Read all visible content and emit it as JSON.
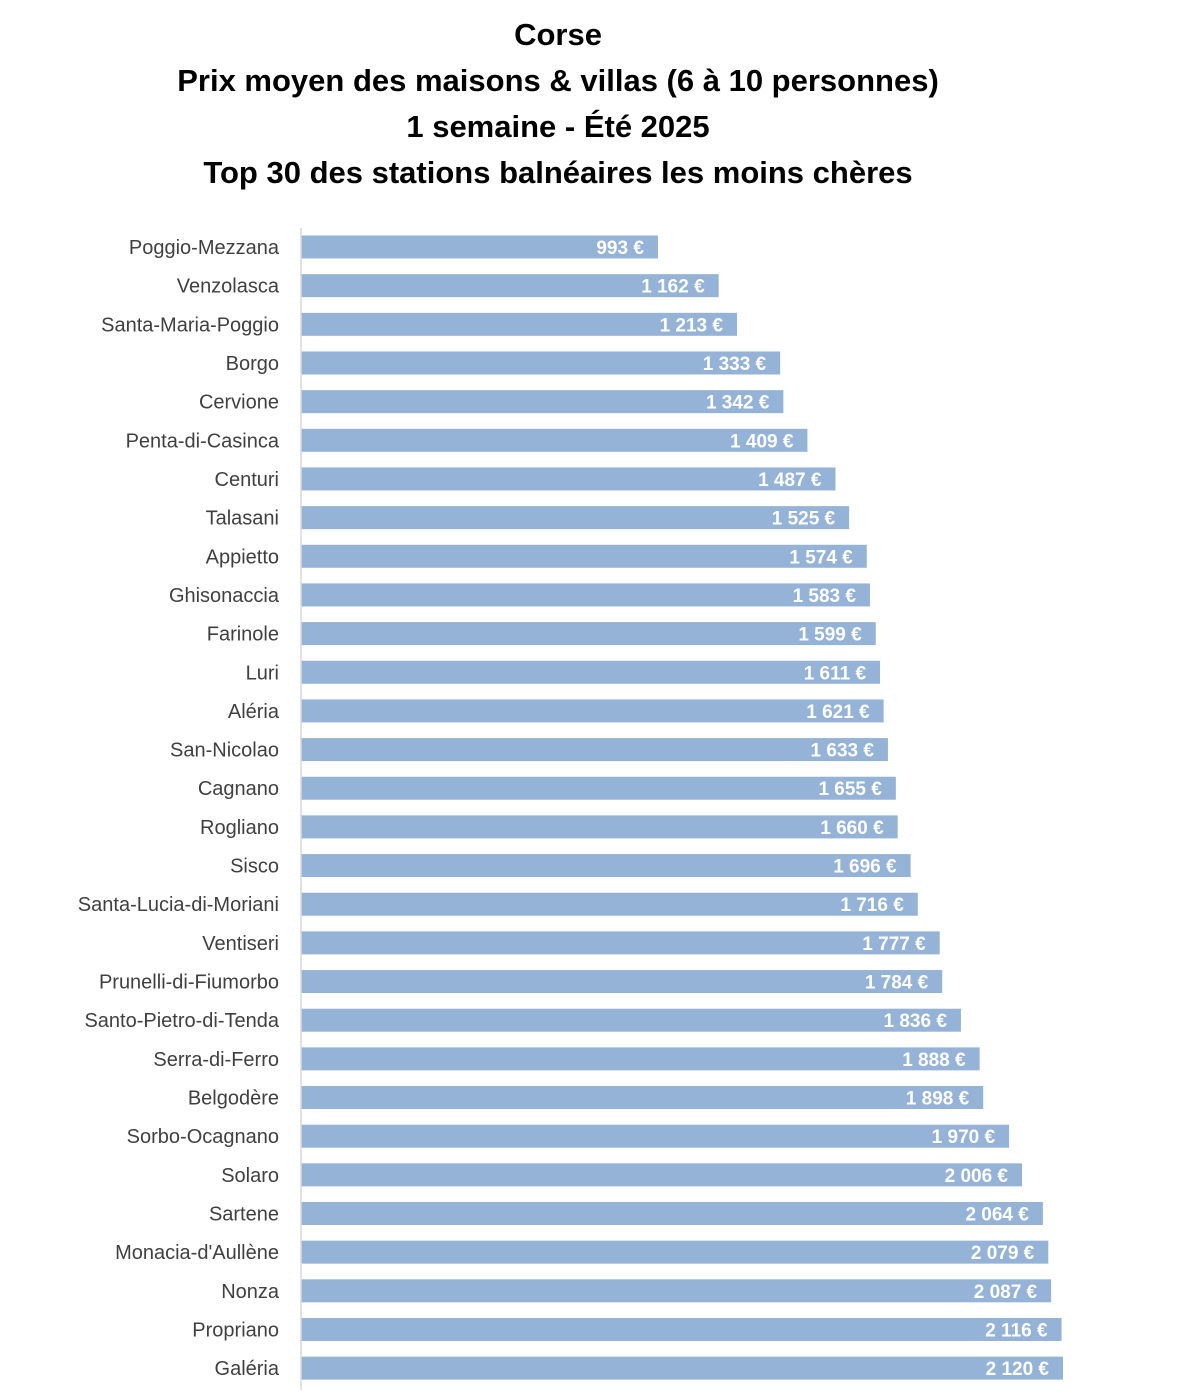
{
  "title_lines": [
    "Corse",
    "Prix moyen des maisons & villas (6 à 10 personnes)",
    "1 semaine - Été 2025",
    "Top 30 des stations balnéaires les moins chères"
  ],
  "chart_data": {
    "type": "bar",
    "orientation": "horizontal",
    "title": "Corse\nPrix moyen des maisons & villas (6 à 10 personnes)\n1 semaine - Été 2025\nTop 30 des stations balnéaires les moins chères",
    "categories": [
      "Poggio-Mezzana",
      "Venzolasca",
      "Santa-Maria-Poggio",
      "Borgo",
      "Cervione",
      "Penta-di-Casinca",
      "Centuri",
      "Talasani",
      "Appietto",
      "Ghisonaccia",
      "Farinole",
      "Luri",
      "Aléria",
      "San-Nicolao",
      "Cagnano",
      "Rogliano",
      "Sisco",
      "Santa-Lucia-di-Moriani",
      "Ventiseri",
      "Prunelli-di-Fiumorbo",
      "Santo-Pietro-di-Tenda",
      "Serra-di-Ferro",
      "Belgodère",
      "Sorbo-Ocagnano",
      "Solaro",
      "Sartene",
      "Monacia-d'Aullène",
      "Nonza",
      "Propriano",
      "Galéria"
    ],
    "values": [
      993,
      1162,
      1213,
      1333,
      1342,
      1409,
      1487,
      1525,
      1574,
      1583,
      1599,
      1611,
      1621,
      1633,
      1655,
      1660,
      1696,
      1716,
      1777,
      1784,
      1836,
      1888,
      1898,
      1970,
      2006,
      2064,
      2079,
      2087,
      2116,
      2120
    ],
    "value_labels": [
      "993 €",
      "1 162 €",
      "1 213 €",
      "1 333 €",
      "1 342 €",
      "1 409 €",
      "1 487 €",
      "1 525 €",
      "1 574 €",
      "1 583 €",
      "1 599 €",
      "1 611 €",
      "1 621 €",
      "1 633 €",
      "1 655 €",
      "1 660 €",
      "1 696 €",
      "1 716 €",
      "1 777 €",
      "1 784 €",
      "1 836 €",
      "1 888 €",
      "1 898 €",
      "1 970 €",
      "2 006 €",
      "2 064 €",
      "2 079 €",
      "2 087 €",
      "2 116 €",
      "2 120 €"
    ],
    "xlabel": "",
    "ylabel": "",
    "xlim": [
      0,
      2120
    ],
    "grid": false,
    "legend": "none",
    "bar_color": "#95B3D7",
    "axis_color": "#D9D9D9",
    "label_color": "#404040",
    "value_label_color": "#FFFFFF"
  }
}
